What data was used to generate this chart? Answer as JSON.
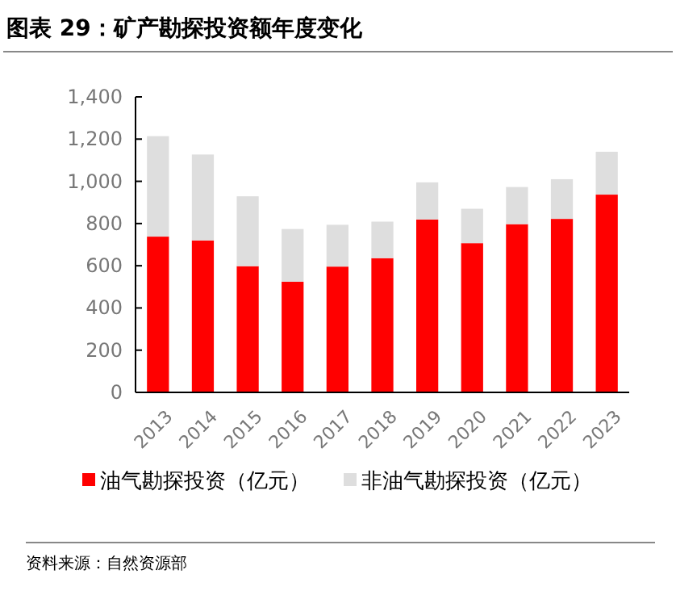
{
  "chart_data": {
    "type": "bar",
    "title": "图表 29：矿产勘探投资额年度变化",
    "stacked": true,
    "legend": "bottom",
    "categories": [
      "2013",
      "2014",
      "2015",
      "2016",
      "2017",
      "2018",
      "2019",
      "2020",
      "2021",
      "2022",
      "2023"
    ],
    "series": [
      {
        "name": "油气勘探投资（亿元）",
        "color": "#ff0000",
        "values": [
          738,
          720,
          598,
          524,
          596,
          636,
          819,
          707,
          797,
          822,
          937
        ]
      },
      {
        "name": "非油气勘探投资（亿元）",
        "color": "#dedede",
        "values": [
          476,
          407,
          331,
          250,
          198,
          173,
          176,
          163,
          176,
          188,
          203
        ]
      }
    ],
    "ylim": [
      0,
      1400
    ],
    "yticks": [
      0,
      {
        "value": 200,
        "label": "200"
      },
      {
        "value": 400,
        "label": "400"
      },
      {
        "value": 600,
        "label": "600"
      },
      {
        "value": 800,
        "label": "800"
      },
      {
        "value": 1000,
        "label": "1,000"
      },
      {
        "value": 1200,
        "label": "1,200"
      },
      {
        "value": 1400,
        "label": "1,400"
      }
    ],
    "grid": false,
    "annotations": [
      "资料来源：自然资源部"
    ]
  }
}
